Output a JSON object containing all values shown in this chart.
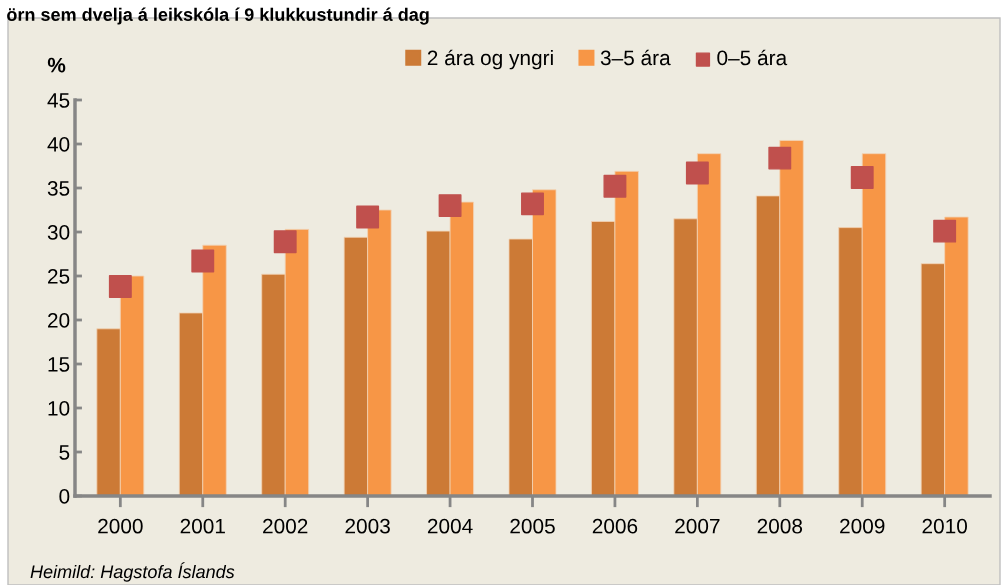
{
  "chart_data": {
    "type": "bar",
    "title": "örn sem dvelja á leikskóla í 9 klukkustundir á dag",
    "ylabel": "%",
    "categories": [
      "2000",
      "2001",
      "2002",
      "2003",
      "2004",
      "2005",
      "2006",
      "2007",
      "2008",
      "2009",
      "2010"
    ],
    "series": [
      {
        "name": "2 ára og yngri",
        "color": "#cc7a36",
        "values": [
          19.0,
          20.8,
          25.2,
          29.4,
          30.1,
          29.2,
          31.2,
          31.5,
          34.1,
          30.5,
          26.4
        ]
      },
      {
        "name": "3–5 ára",
        "color": "#f79646",
        "values": [
          25.0,
          28.5,
          30.3,
          32.5,
          33.4,
          34.8,
          36.9,
          38.9,
          40.4,
          38.9,
          31.7
        ]
      },
      {
        "name": "0–5 ára",
        "color": "#c0504d",
        "type": "scatter",
        "marker": "square",
        "values": [
          23.8,
          26.7,
          28.9,
          31.7,
          33.0,
          33.2,
          35.2,
          36.7,
          38.4,
          36.2,
          30.1
        ]
      }
    ],
    "ylim": [
      0,
      45
    ],
    "yticks": [
      0,
      5,
      10,
      15,
      20,
      25,
      30,
      35,
      40,
      45
    ],
    "grid": false,
    "legend": "top",
    "annotations": [
      "Heimild: Hagstofa Íslands"
    ]
  }
}
